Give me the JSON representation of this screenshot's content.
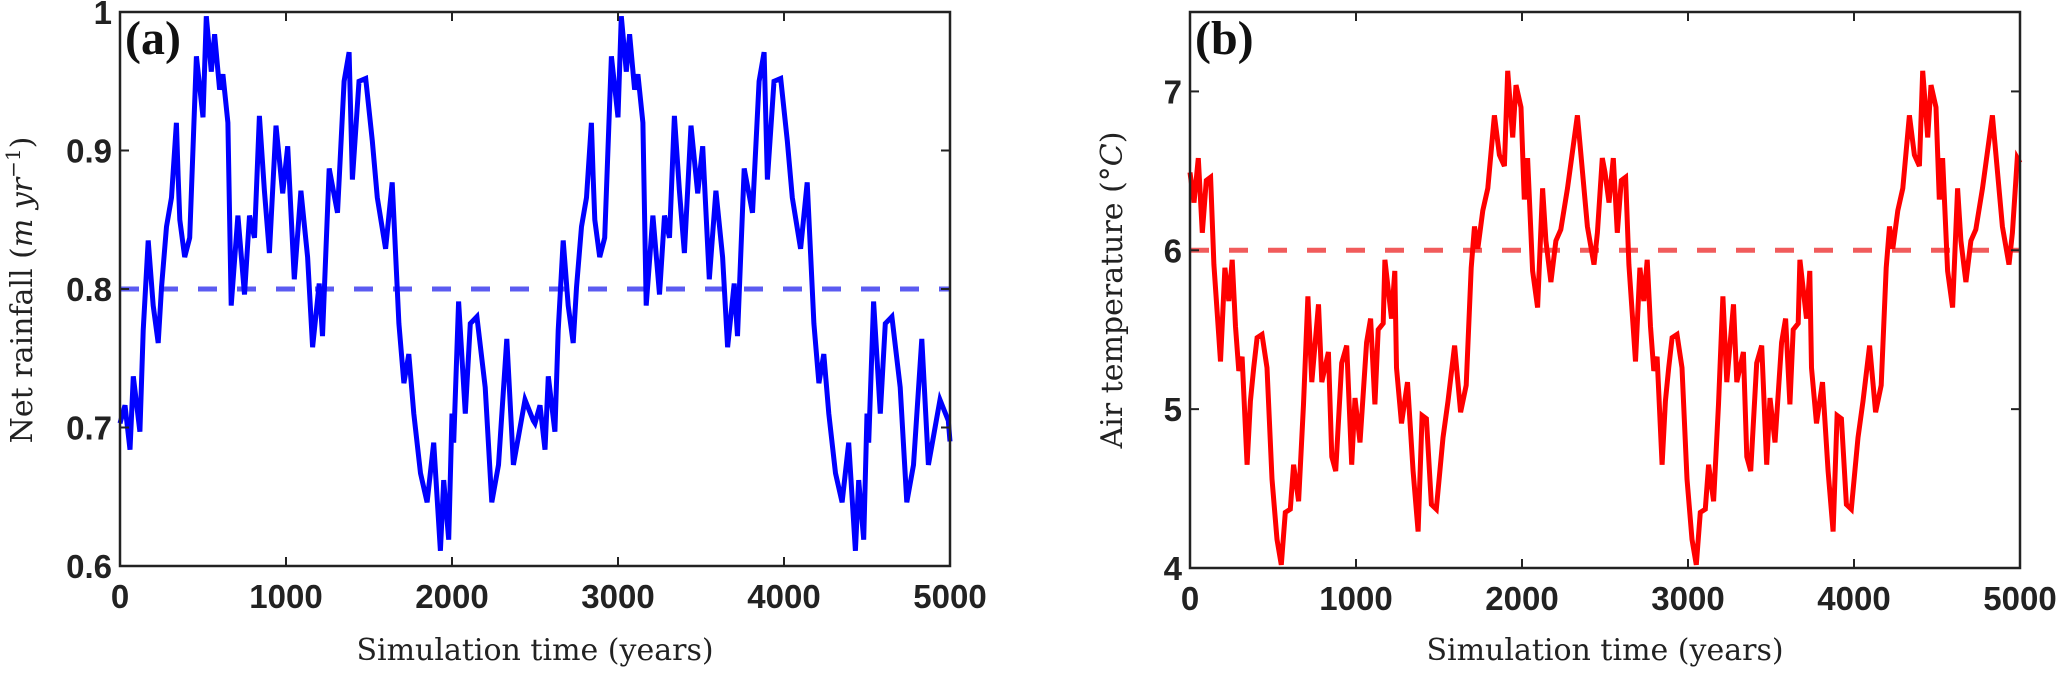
{
  "chart_data": [
    {
      "type": "line",
      "panel_label": "(a)",
      "xlabel": "Simulation time (years)",
      "ylabel": "Net rainfall (m yr⁻¹)",
      "ylabel_parts": {
        "main": "Net rainfall (",
        "unit": "m yr",
        "sup": "−1",
        "close": ")"
      },
      "xlim": [
        0,
        5000
      ],
      "ylim": [
        0.6,
        1.0
      ],
      "xticks": [
        0,
        1000,
        2000,
        3000,
        4000,
        5000
      ],
      "xtick_labels": [
        "0",
        "1000",
        "2000",
        "3000",
        "4000",
        "5000"
      ],
      "yticks": [
        0.6,
        0.7,
        0.8,
        0.9,
        1.0
      ],
      "ytick_labels": [
        "0.6",
        "0.7",
        "0.8",
        "0.9",
        "1"
      ],
      "grid": false,
      "reference_line": {
        "y": 0.8,
        "style": "dashed",
        "color": "#4a4af0"
      },
      "series": [
        {
          "name": "Net rainfall",
          "color": "#0000ff",
          "x": [
            0,
            30,
            60,
            80,
            120,
            140,
            170,
            200,
            230,
            250,
            280,
            310,
            340,
            350,
            360,
            390,
            420,
            460,
            500,
            520,
            550,
            570,
            600,
            620,
            650,
            670,
            710,
            750,
            780,
            810,
            840,
            870,
            900,
            940,
            980,
            1010,
            1050,
            1090,
            1130,
            1160,
            1200,
            1220,
            1260,
            1310,
            1350,
            1380,
            1400,
            1440,
            1480,
            1520,
            1550,
            1600,
            1640,
            1680,
            1710,
            1740,
            1770,
            1810,
            1850,
            1890,
            1930,
            1950,
            1980,
            2000,
            2010,
            2040,
            2080,
            2110,
            2150,
            2200,
            2240,
            2280,
            2330,
            2370,
            2440,
            2490,
            2500,
            2530,
            2560,
            2580,
            2620,
            2640,
            2670,
            2700,
            2730,
            2750,
            2780,
            2810,
            2840,
            2850,
            2860,
            2890,
            2920,
            2960,
            3000,
            3020,
            3050,
            3070,
            3100,
            3120,
            3150,
            3170,
            3210,
            3250,
            3280,
            3310,
            3340,
            3370,
            3400,
            3440,
            3480,
            3510,
            3550,
            3590,
            3630,
            3660,
            3700,
            3720,
            3760,
            3810,
            3850,
            3880,
            3900,
            3940,
            3980,
            4020,
            4050,
            4100,
            4140,
            4180,
            4210,
            4240,
            4270,
            4310,
            4350,
            4390,
            4430,
            4450,
            4480,
            4500,
            4510,
            4540,
            4580,
            4610,
            4650,
            4700,
            4740,
            4780,
            4830,
            4870,
            4940,
            4990,
            5000
          ],
          "y": [
            0.703,
            0.716,
            0.684,
            0.737,
            0.697,
            0.77,
            0.835,
            0.788,
            0.761,
            0.801,
            0.845,
            0.866,
            0.92,
            0.882,
            0.85,
            0.823,
            0.837,
            0.968,
            0.924,
            0.997,
            0.957,
            0.984,
            0.944,
            0.955,
            0.92,
            0.788,
            0.853,
            0.796,
            0.853,
            0.837,
            0.925,
            0.871,
            0.826,
            0.918,
            0.869,
            0.903,
            0.807,
            0.871,
            0.823,
            0.758,
            0.804,
            0.766,
            0.887,
            0.855,
            0.95,
            0.971,
            0.879,
            0.95,
            0.952,
            0.907,
            0.866,
            0.829,
            0.877,
            0.775,
            0.732,
            0.753,
            0.71,
            0.667,
            0.646,
            0.689,
            0.611,
            0.662,
            0.619,
            0.71,
            0.689,
            0.791,
            0.71,
            0.775,
            0.78,
            0.729,
            0.646,
            0.673,
            0.764,
            0.673,
            0.72,
            0.705,
            0.703,
            0.716,
            0.684,
            0.737,
            0.697,
            0.77,
            0.835,
            0.788,
            0.761,
            0.801,
            0.845,
            0.866,
            0.92,
            0.882,
            0.85,
            0.823,
            0.837,
            0.968,
            0.924,
            0.997,
            0.957,
            0.984,
            0.944,
            0.955,
            0.92,
            0.788,
            0.853,
            0.796,
            0.853,
            0.837,
            0.925,
            0.871,
            0.826,
            0.918,
            0.869,
            0.903,
            0.807,
            0.871,
            0.823,
            0.758,
            0.804,
            0.766,
            0.887,
            0.855,
            0.95,
            0.971,
            0.879,
            0.95,
            0.952,
            0.907,
            0.866,
            0.829,
            0.877,
            0.775,
            0.732,
            0.753,
            0.71,
            0.667,
            0.646,
            0.689,
            0.611,
            0.662,
            0.619,
            0.71,
            0.689,
            0.791,
            0.71,
            0.775,
            0.78,
            0.729,
            0.646,
            0.673,
            0.764,
            0.673,
            0.72,
            0.705,
            0.69
          ]
        }
      ]
    },
    {
      "type": "line",
      "panel_label": "(b)",
      "xlabel": "Simulation time (years)",
      "ylabel": "Air temperature (°C)",
      "ylabel_parts": {
        "main": "Air temperature (",
        "unit": "°C",
        "close": ")"
      },
      "xlim": [
        0,
        5000
      ],
      "ylim": [
        4,
        7.5
      ],
      "xticks": [
        0,
        1000,
        2000,
        3000,
        4000,
        5000
      ],
      "xtick_labels": [
        "0",
        "1000",
        "2000",
        "3000",
        "4000",
        "5000"
      ],
      "yticks": [
        4,
        5,
        6,
        7
      ],
      "ytick_labels": [
        "4",
        "5",
        "6",
        "7"
      ],
      "grid": false,
      "reference_line": {
        "y": 6,
        "style": "dashed",
        "color": "#f04a4a"
      },
      "series": [
        {
          "name": "Air temperature",
          "color": "#ff0000",
          "x": [
            0,
            24,
            50,
            74,
            98,
            124,
            144,
            174,
            184,
            210,
            234,
            254,
            274,
            294,
            314,
            344,
            364,
            384,
            404,
            434,
            464,
            494,
            524,
            550,
            574,
            604,
            624,
            654,
            684,
            710,
            734,
            774,
            794,
            834,
            854,
            878,
            914,
            944,
            974,
            994,
            1024,
            1064,
            1088,
            1114,
            1134,
            1164,
            1174,
            1214,
            1234,
            1244,
            1274,
            1310,
            1344,
            1374,
            1398,
            1424,
            1454,
            1484,
            1524,
            1554,
            1594,
            1630,
            1664,
            1694,
            1714,
            1734,
            1764,
            1794,
            1834,
            1864,
            1894,
            1914,
            1944,
            1964,
            1994,
            2014,
            2034,
            2064,
            2094,
            2124,
            2144,
            2174,
            2204,
            2234,
            2274,
            2334,
            2394,
            2434,
            2454,
            2484,
            2500,
            2524,
            2550,
            2574,
            2598,
            2624,
            2644,
            2674,
            2684,
            2710,
            2734,
            2754,
            2774,
            2794,
            2814,
            2844,
            2864,
            2884,
            2904,
            2934,
            2964,
            2994,
            3024,
            3050,
            3074,
            3104,
            3124,
            3154,
            3184,
            3210,
            3234,
            3274,
            3294,
            3334,
            3354,
            3378,
            3414,
            3444,
            3474,
            3494,
            3524,
            3564,
            3588,
            3614,
            3634,
            3664,
            3674,
            3714,
            3734,
            3744,
            3774,
            3810,
            3844,
            3874,
            3898,
            3924,
            3954,
            3984,
            4024,
            4054,
            4094,
            4130,
            4164,
            4194,
            4214,
            4234,
            4264,
            4294,
            4334,
            4364,
            4394,
            4414,
            4444,
            4464,
            4494,
            4514,
            4534,
            4564,
            4594,
            4624,
            4644,
            4674,
            4704,
            4734,
            4774,
            4834,
            4894,
            4934,
            4954,
            4984,
            5000
          ],
          "y": [
            6.49,
            6.3,
            6.58,
            6.11,
            6.44,
            6.46,
            5.91,
            5.45,
            5.3,
            5.89,
            5.68,
            5.94,
            5.52,
            5.24,
            5.33,
            4.65,
            5.05,
            5.26,
            5.45,
            5.47,
            5.26,
            4.56,
            4.18,
            4.02,
            4.35,
            4.37,
            4.65,
            4.42,
            5.03,
            5.71,
            5.17,
            5.66,
            5.17,
            5.36,
            4.7,
            4.61,
            5.29,
            5.4,
            4.65,
            5.07,
            4.79,
            5.42,
            5.57,
            5.03,
            5.5,
            5.54,
            5.94,
            5.57,
            5.87,
            5.26,
            4.91,
            5.17,
            4.61,
            4.23,
            4.96,
            4.94,
            4.4,
            4.37,
            4.82,
            5.05,
            5.4,
            4.98,
            5.15,
            5.89,
            6.15,
            6.01,
            6.25,
            6.39,
            6.85,
            6.6,
            6.53,
            7.13,
            6.71,
            7.04,
            6.9,
            6.32,
            6.58,
            5.87,
            5.64,
            6.39,
            6.06,
            5.8,
            6.06,
            6.13,
            6.39,
            6.85,
            6.15,
            5.91,
            6.11,
            6.58,
            6.49,
            6.3,
            6.58,
            6.11,
            6.44,
            6.46,
            5.91,
            5.45,
            5.3,
            5.89,
            5.68,
            5.94,
            5.52,
            5.24,
            5.33,
            4.65,
            5.05,
            5.26,
            5.45,
            5.47,
            5.26,
            4.56,
            4.18,
            4.02,
            4.35,
            4.37,
            4.65,
            4.42,
            5.03,
            5.71,
            5.17,
            5.66,
            5.17,
            5.36,
            4.7,
            4.61,
            5.29,
            5.4,
            4.65,
            5.07,
            4.79,
            5.42,
            5.57,
            5.03,
            5.5,
            5.54,
            5.94,
            5.57,
            5.87,
            5.26,
            4.91,
            5.17,
            4.61,
            4.23,
            4.96,
            4.94,
            4.4,
            4.37,
            4.82,
            5.05,
            5.4,
            4.98,
            5.15,
            5.89,
            6.15,
            6.01,
            6.25,
            6.39,
            6.85,
            6.6,
            6.53,
            7.13,
            6.71,
            7.04,
            6.9,
            6.32,
            6.58,
            5.87,
            5.64,
            6.39,
            6.06,
            5.8,
            6.06,
            6.13,
            6.39,
            6.85,
            6.15,
            5.91,
            6.11,
            6.58,
            6.55
          ]
        }
      ]
    }
  ]
}
